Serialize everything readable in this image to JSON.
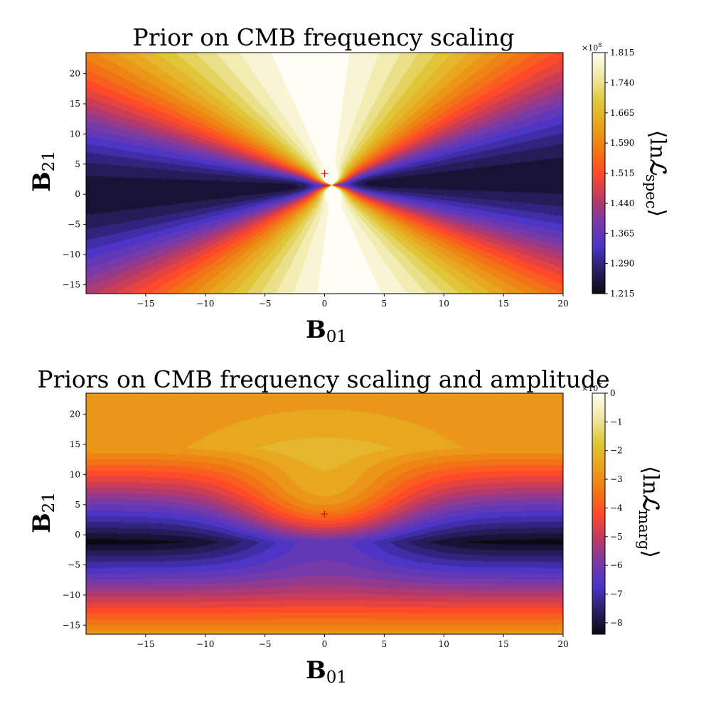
{
  "chart_data": [
    {
      "type": "contour",
      "title": "Prior on CMB frequency scaling",
      "xlabel": "B",
      "xlabel_sub": "01",
      "ylabel": "B",
      "ylabel_sub": "21",
      "xlim": [
        -20,
        20
      ],
      "ylim": [
        -16.5,
        23.5
      ],
      "xticks": [
        -15,
        -10,
        -5,
        0,
        5,
        10,
        15,
        20
      ],
      "yticks": [
        -15,
        -10,
        -5,
        0,
        5,
        10,
        15,
        20
      ],
      "marker": {
        "x": 0,
        "y": 3.5,
        "symbol": "+",
        "color": "#e01010"
      },
      "colorbar": {
        "label_prefix": "⟨ln",
        "label_symbol": "ℒ",
        "label_sub": "spec",
        "label_suffix": "⟩",
        "multiplier": "×10",
        "multiplier_exp": "8",
        "range": [
          1.215,
          1.815
        ],
        "ticks": [
          "1.215",
          "1.290",
          "1.365",
          "1.440",
          "1.515",
          "1.590",
          "1.665",
          "1.740",
          "1.815"
        ],
        "cmap": [
          "#0b0a12",
          "#2a1f66",
          "#4a35c8",
          "#7a3aa6",
          "#c03a5f",
          "#ff4a2a",
          "#f07a12",
          "#e8a41c",
          "#e0c83c",
          "#eee8a4",
          "#fefef4"
        ]
      }
    },
    {
      "type": "contour",
      "title": "Priors on CMB frequency scaling and amplitude",
      "xlabel": "B",
      "xlabel_sub": "01",
      "ylabel": "B",
      "ylabel_sub": "21",
      "xlim": [
        -20,
        20
      ],
      "ylim": [
        -16.5,
        23.5
      ],
      "xticks": [
        -15,
        -10,
        -5,
        0,
        5,
        10,
        15,
        20
      ],
      "yticks": [
        -15,
        -10,
        -5,
        0,
        5,
        10,
        15,
        20
      ],
      "marker": {
        "x": 0,
        "y": 3.5,
        "symbol": "+",
        "color": "#e01010"
      },
      "colorbar": {
        "label_prefix": "⟨ln",
        "label_symbol": "ℒ",
        "label_sub": "marg",
        "label_suffix": "⟩",
        "multiplier": "×10",
        "multiplier_exp": "7",
        "range": [
          -8.4,
          0
        ],
        "ticks": [
          "−8",
          "−7",
          "−6",
          "−5",
          "−4",
          "−3",
          "−2",
          "−1",
          "0"
        ],
        "tick_values": [
          -8,
          -7,
          -6,
          -5,
          -4,
          -3,
          -2,
          -1,
          0
        ],
        "cmap": [
          "#0b0a12",
          "#2a1f66",
          "#4a35c8",
          "#7a3aa6",
          "#c03a5f",
          "#ff4a2a",
          "#f07a12",
          "#e8a41c",
          "#e0c83c",
          "#eee8a4",
          "#fefef4"
        ]
      }
    }
  ]
}
